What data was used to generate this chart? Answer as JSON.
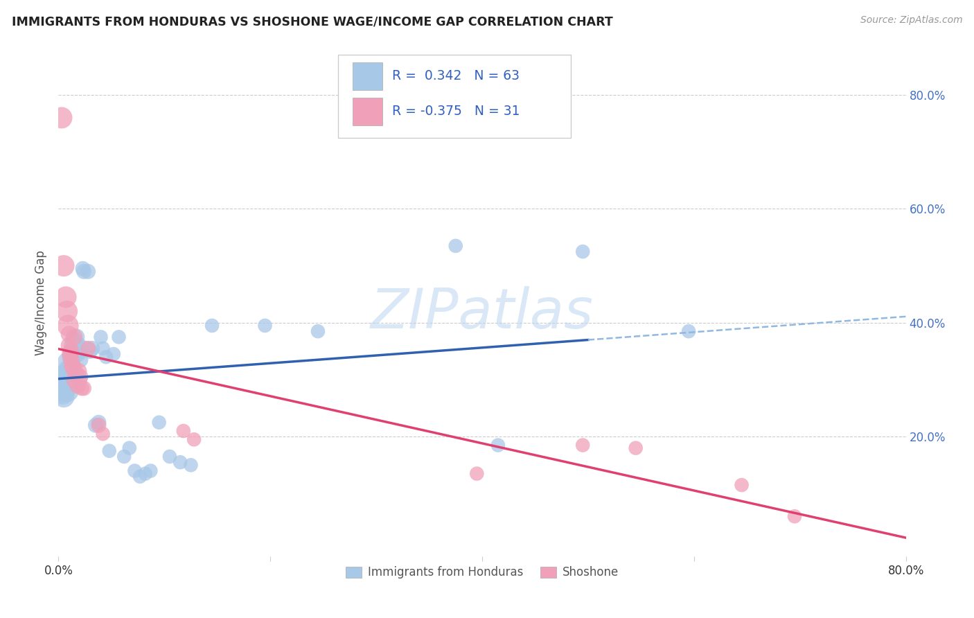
{
  "title": "IMMIGRANTS FROM HONDURAS VS SHOSHONE WAGE/INCOME GAP CORRELATION CHART",
  "source": "Source: ZipAtlas.com",
  "ylabel": "Wage/Income Gap",
  "legend_label1": "Immigrants from Honduras",
  "legend_label2": "Shoshone",
  "r1": 0.342,
  "n1": 63,
  "r2": -0.375,
  "n2": 31,
  "color_blue": "#A8C8E8",
  "color_pink": "#F0A0B8",
  "line_blue": "#3060B0",
  "line_pink": "#E04070",
  "line_blue_dashed": "#90B8E0",
  "watermark_color": "#C0D8F0",
  "right_ytick_color": "#4472C4",
  "blue_scatter": [
    [
      0.002,
      0.285
    ],
    [
      0.003,
      0.29
    ],
    [
      0.004,
      0.295
    ],
    [
      0.004,
      0.275
    ],
    [
      0.005,
      0.27
    ],
    [
      0.005,
      0.28
    ],
    [
      0.006,
      0.305
    ],
    [
      0.006,
      0.295
    ],
    [
      0.007,
      0.3
    ],
    [
      0.007,
      0.285
    ],
    [
      0.008,
      0.31
    ],
    [
      0.008,
      0.295
    ],
    [
      0.009,
      0.315
    ],
    [
      0.009,
      0.33
    ],
    [
      0.009,
      0.28
    ],
    [
      0.01,
      0.32
    ],
    [
      0.01,
      0.3
    ],
    [
      0.011,
      0.34
    ],
    [
      0.011,
      0.31
    ],
    [
      0.012,
      0.35
    ],
    [
      0.012,
      0.325
    ],
    [
      0.013,
      0.36
    ],
    [
      0.013,
      0.33
    ],
    [
      0.014,
      0.37
    ],
    [
      0.014,
      0.34
    ],
    [
      0.015,
      0.355
    ],
    [
      0.016,
      0.365
    ],
    [
      0.017,
      0.375
    ],
    [
      0.018,
      0.345
    ],
    [
      0.019,
      0.36
    ],
    [
      0.02,
      0.35
    ],
    [
      0.021,
      0.335
    ],
    [
      0.023,
      0.495
    ],
    [
      0.024,
      0.49
    ],
    [
      0.026,
      0.355
    ],
    [
      0.028,
      0.49
    ],
    [
      0.03,
      0.35
    ],
    [
      0.032,
      0.355
    ],
    [
      0.035,
      0.22
    ],
    [
      0.038,
      0.225
    ],
    [
      0.04,
      0.375
    ],
    [
      0.042,
      0.355
    ],
    [
      0.045,
      0.34
    ],
    [
      0.048,
      0.175
    ],
    [
      0.052,
      0.345
    ],
    [
      0.057,
      0.375
    ],
    [
      0.062,
      0.165
    ],
    [
      0.067,
      0.18
    ],
    [
      0.072,
      0.14
    ],
    [
      0.077,
      0.13
    ],
    [
      0.082,
      0.135
    ],
    [
      0.087,
      0.14
    ],
    [
      0.095,
      0.225
    ],
    [
      0.105,
      0.165
    ],
    [
      0.115,
      0.155
    ],
    [
      0.125,
      0.15
    ],
    [
      0.145,
      0.395
    ],
    [
      0.195,
      0.395
    ],
    [
      0.245,
      0.385
    ],
    [
      0.375,
      0.535
    ],
    [
      0.415,
      0.185
    ],
    [
      0.495,
      0.525
    ],
    [
      0.595,
      0.385
    ]
  ],
  "pink_scatter": [
    [
      0.003,
      0.76
    ],
    [
      0.005,
      0.5
    ],
    [
      0.007,
      0.445
    ],
    [
      0.008,
      0.42
    ],
    [
      0.009,
      0.395
    ],
    [
      0.01,
      0.38
    ],
    [
      0.01,
      0.36
    ],
    [
      0.011,
      0.345
    ],
    [
      0.012,
      0.335
    ],
    [
      0.012,
      0.35
    ],
    [
      0.013,
      0.325
    ],
    [
      0.014,
      0.32
    ],
    [
      0.015,
      0.3
    ],
    [
      0.015,
      0.375
    ],
    [
      0.017,
      0.31
    ],
    [
      0.018,
      0.29
    ],
    [
      0.019,
      0.315
    ],
    [
      0.02,
      0.3
    ],
    [
      0.021,
      0.305
    ],
    [
      0.022,
      0.285
    ],
    [
      0.024,
      0.285
    ],
    [
      0.028,
      0.355
    ],
    [
      0.038,
      0.22
    ],
    [
      0.042,
      0.205
    ],
    [
      0.118,
      0.21
    ],
    [
      0.128,
      0.195
    ],
    [
      0.395,
      0.135
    ],
    [
      0.495,
      0.185
    ],
    [
      0.545,
      0.18
    ],
    [
      0.645,
      0.115
    ],
    [
      0.695,
      0.06
    ]
  ],
  "xlim": [
    0.0,
    0.8
  ],
  "ylim": [
    -0.01,
    0.88
  ],
  "xtick_positions": [
    0.0,
    0.2,
    0.4,
    0.6,
    0.8
  ],
  "ytick_positions": [
    0.2,
    0.4,
    0.6,
    0.8
  ],
  "blue_line_solid_end": 0.5,
  "blue_line_dashed_start": 0.5,
  "blue_line_dashed_end": 0.8
}
